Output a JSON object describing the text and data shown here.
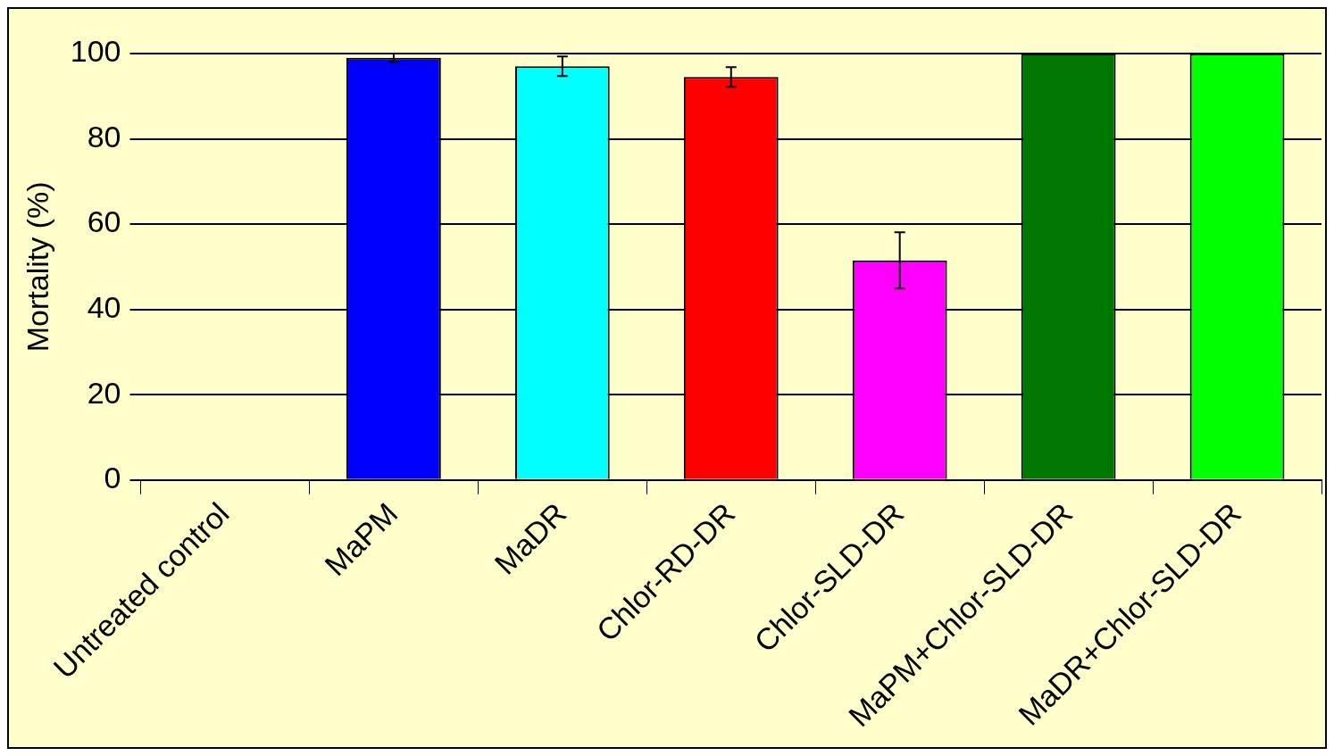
{
  "chart_data": {
    "type": "bar",
    "ylabel": "Mortality (%)",
    "categories": [
      "Untreated control",
      "MaPM",
      "MaDR",
      "Chlor-RD-DR",
      "Chlor-SLD-DR",
      "MaPM+Chlor-SLD-DR",
      "MaDR+Chlor-SLD-DR"
    ],
    "values": [
      0,
      99,
      97,
      94.5,
      51.5,
      100,
      100
    ],
    "errors": [
      null,
      1,
      2.3,
      2.3,
      6.6,
      null,
      null
    ],
    "colors": [
      "#ffffcc",
      "#0000ff",
      "#00ffff",
      "#ff0000",
      "#ff00ff",
      "#007800",
      "#00ff00"
    ],
    "ylim": [
      0,
      100
    ],
    "yticks": [
      0,
      20,
      40,
      60,
      80,
      100
    ],
    "grid": "y",
    "legend": false
  }
}
